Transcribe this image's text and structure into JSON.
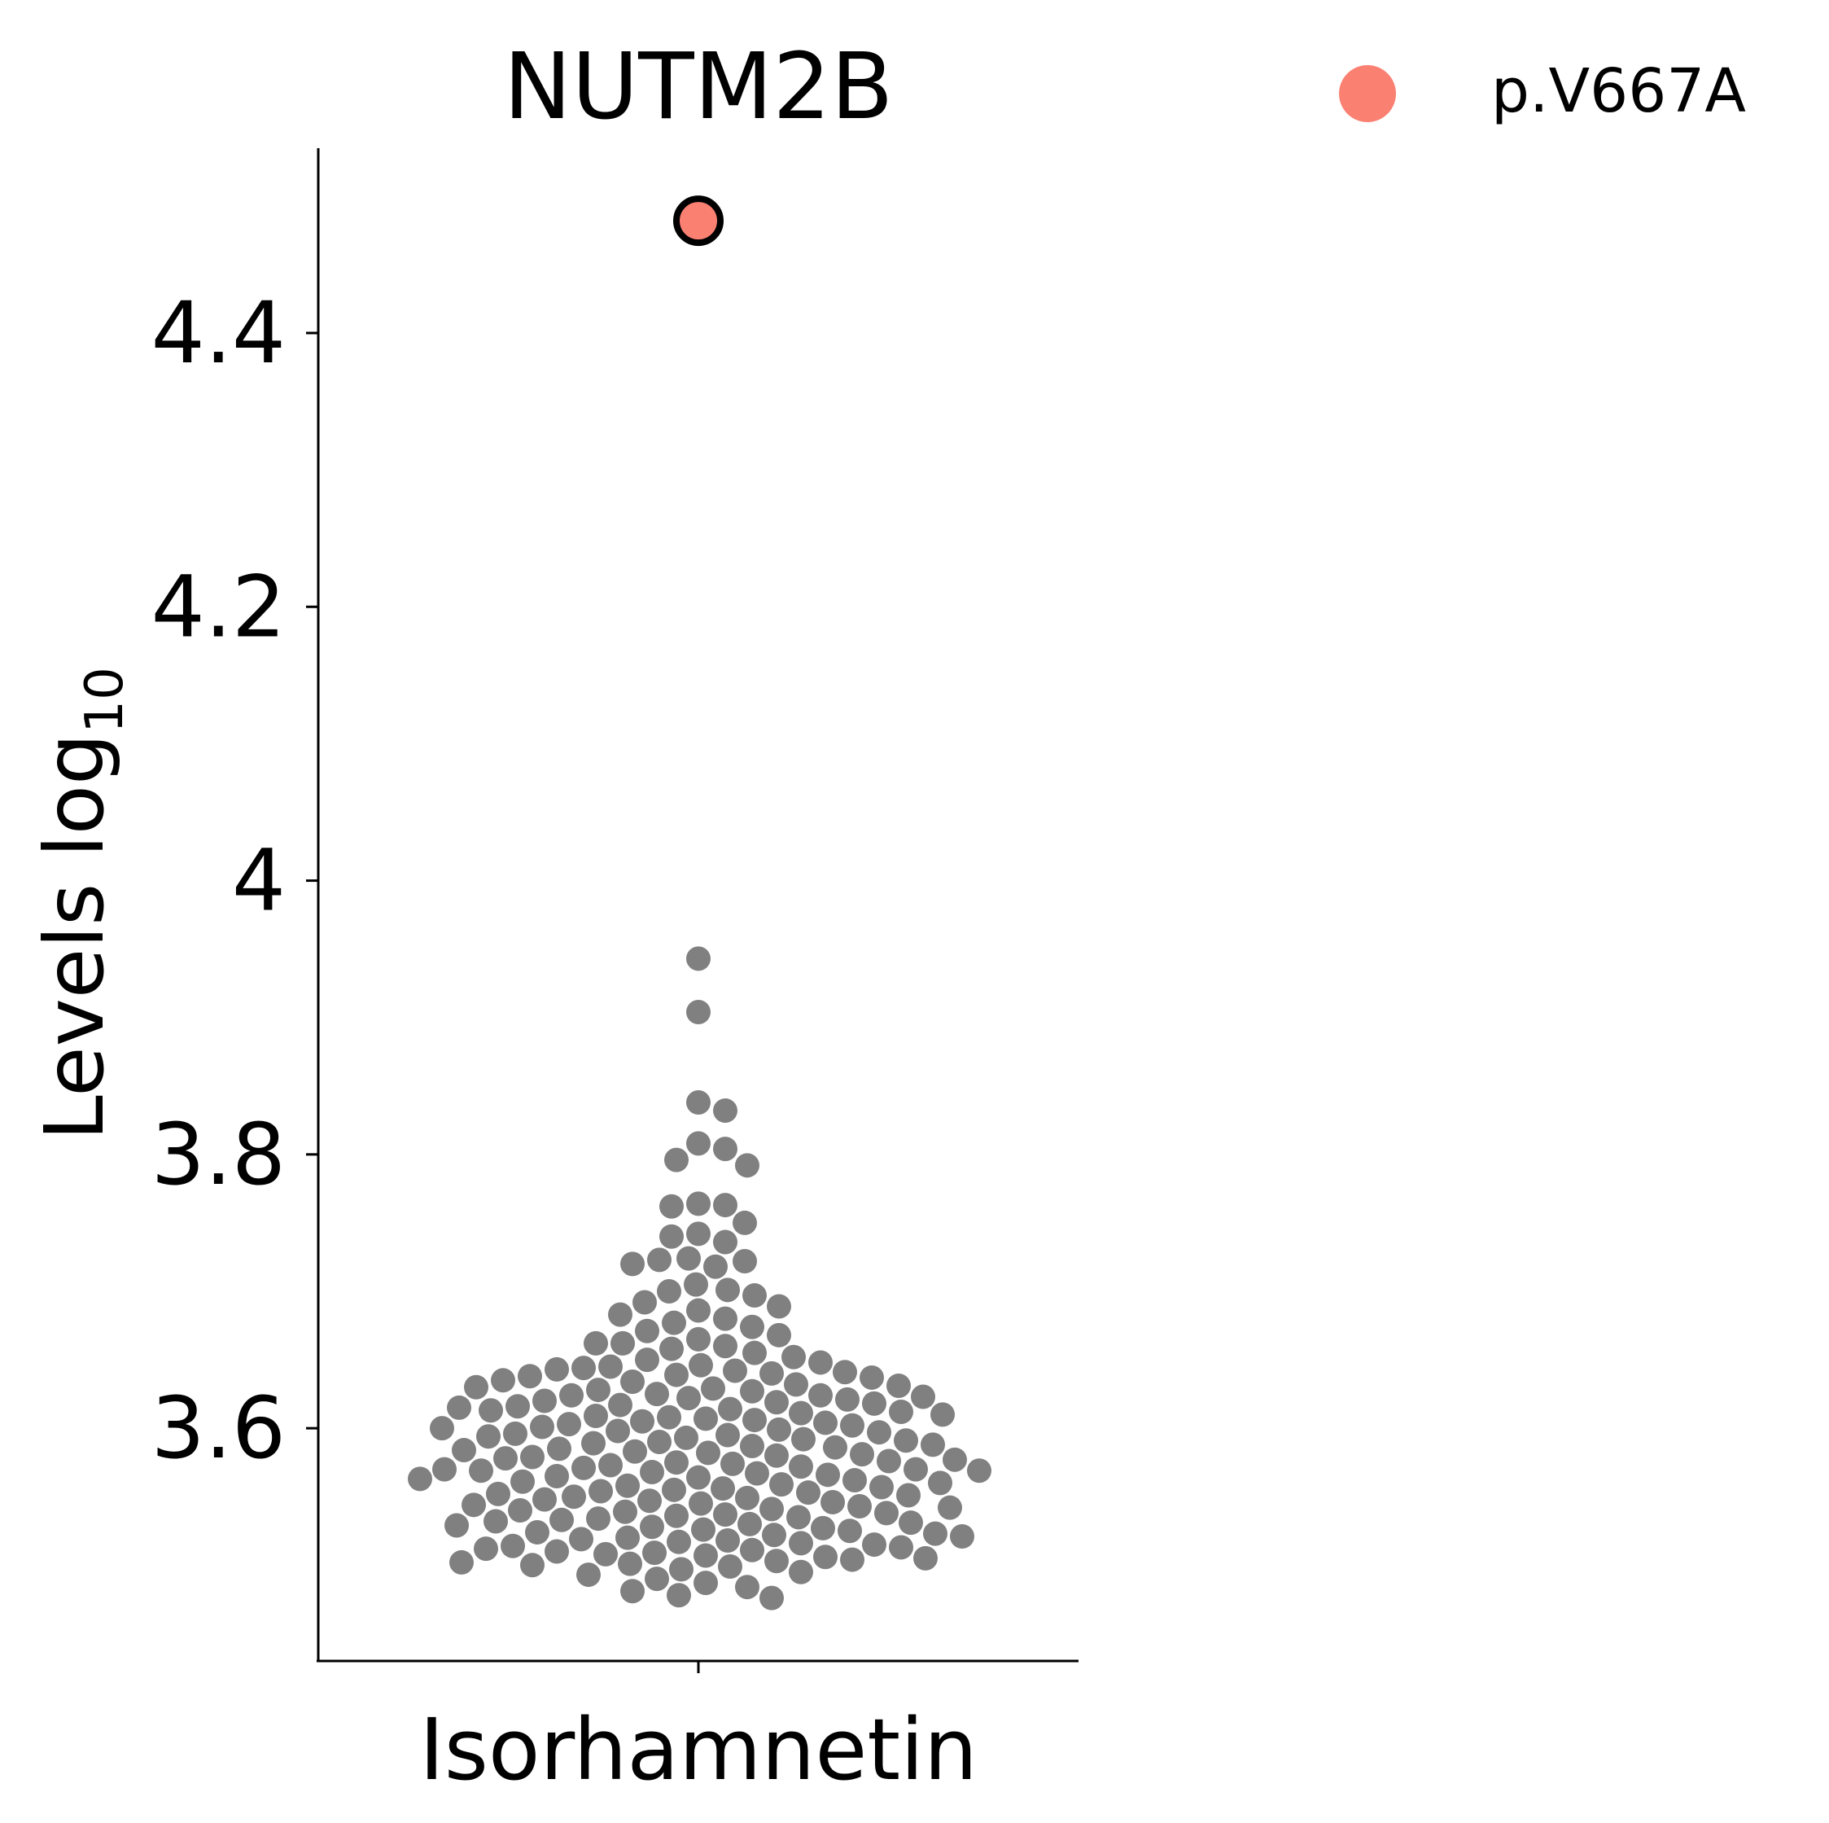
{
  "chart_data": {
    "type": "scatter",
    "subtype": "swarm",
    "title": "NUTM2B",
    "xlabel": "Isorhamnetin",
    "ylabel_main": "Levels log",
    "ylabel_sub": "10",
    "categories": [
      "Isorhamnetin"
    ],
    "ylim": [
      3.43,
      4.535
    ],
    "yticks": [
      {
        "value": 3.6,
        "label": "3.6"
      },
      {
        "value": 3.8,
        "label": "3.8"
      },
      {
        "value": 4.0,
        "label": "4"
      },
      {
        "value": 4.2,
        "label": "4.2"
      },
      {
        "value": 4.4,
        "label": "4.4"
      }
    ],
    "legend": {
      "position": "top-right",
      "entries": [
        {
          "label": "p.V667A",
          "color": "#fa8072"
        }
      ]
    },
    "colors": {
      "background_points": "#808080",
      "highlight": "#fa8072",
      "highlight_edge": "#000000"
    },
    "highlight": {
      "label": "p.V667A",
      "category": "Isorhamnetin",
      "value": 4.482
    },
    "series": [
      {
        "category": "Isorhamnetin",
        "values": [
          3.943,
          3.904,
          3.838,
          3.832,
          3.808,
          3.804,
          3.796,
          3.792,
          3.764,
          3.763,
          3.762,
          3.75,
          3.742,
          3.74,
          3.736,
          3.724,
          3.723,
          3.722,
          3.72,
          3.718,
          3.705,
          3.701,
          3.7,
          3.697,
          3.692,
          3.689,
          3.686,
          3.683,
          3.68,
          3.677,
          3.674,
          3.671,
          3.668,
          3.665,
          3.662,
          3.662,
          3.66,
          3.658,
          3.655,
          3.652,
          3.65,
          3.648,
          3.646,
          3.645,
          3.644,
          3.643,
          3.642,
          3.641,
          3.64,
          3.639,
          3.638,
          3.637,
          3.635,
          3.634,
          3.632,
          3.631,
          3.63,
          3.629,
          3.628,
          3.627,
          3.625,
          3.624,
          3.624,
          3.623,
          3.622,
          3.621,
          3.62,
          3.619,
          3.618,
          3.617,
          3.616,
          3.615,
          3.614,
          3.613,
          3.612,
          3.611,
          3.61,
          3.609,
          3.608,
          3.607,
          3.606,
          3.605,
          3.604,
          3.603,
          3.602,
          3.601,
          3.6,
          3.599,
          3.598,
          3.597,
          3.596,
          3.595,
          3.594,
          3.593,
          3.592,
          3.591,
          3.59,
          3.589,
          3.588,
          3.587,
          3.586,
          3.585,
          3.584,
          3.583,
          3.582,
          3.581,
          3.58,
          3.579,
          3.578,
          3.577,
          3.576,
          3.575,
          3.574,
          3.573,
          3.572,
          3.571,
          3.57,
          3.57,
          3.569,
          3.569,
          3.568,
          3.567,
          3.566,
          3.565,
          3.564,
          3.563,
          3.562,
          3.561,
          3.56,
          3.559,
          3.558,
          3.557,
          3.556,
          3.555,
          3.554,
          3.553,
          3.552,
          3.551,
          3.55,
          3.549,
          3.548,
          3.547,
          3.546,
          3.545,
          3.544,
          3.543,
          3.542,
          3.541,
          3.54,
          3.539,
          3.538,
          3.537,
          3.536,
          3.535,
          3.534,
          3.533,
          3.532,
          3.531,
          3.53,
          3.529,
          3.528,
          3.527,
          3.526,
          3.525,
          3.524,
          3.523,
          3.522,
          3.521,
          3.52,
          3.519,
          3.518,
          3.517,
          3.516,
          3.515,
          3.514,
          3.513,
          3.512,
          3.511,
          3.51,
          3.509,
          3.508,
          3.507,
          3.506,
          3.505,
          3.504,
          3.503,
          3.502,
          3.501,
          3.5,
          3.499,
          3.497,
          3.495,
          3.493,
          3.49,
          3.487,
          3.484,
          3.481,
          3.478,
          3.476
        ]
      }
    ]
  }
}
